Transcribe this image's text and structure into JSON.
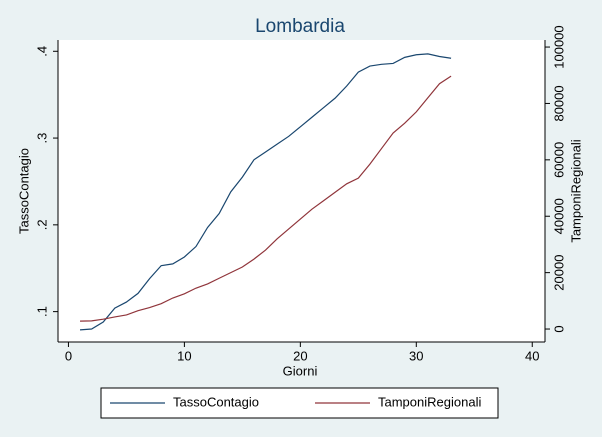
{
  "chart_data": {
    "type": "line",
    "title": "Lombardia",
    "xlabel": "Giorni",
    "ylabel": "TassoContagio",
    "y2label": "TamponiRegionali",
    "x": [
      1,
      2,
      3,
      4,
      5,
      6,
      7,
      8,
      9,
      10,
      11,
      12,
      13,
      14,
      15,
      16,
      17,
      18,
      19,
      20,
      21,
      22,
      23,
      24,
      25,
      26,
      27,
      28,
      29,
      30,
      31,
      32,
      33
    ],
    "series": [
      {
        "name": "TassoContagio",
        "color": "#1a476f",
        "axis": "y",
        "values": [
          0.079,
          0.08,
          0.088,
          0.104,
          0.111,
          0.121,
          0.138,
          0.153,
          0.155,
          0.163,
          0.175,
          0.197,
          0.213,
          0.238,
          0.255,
          0.275,
          0.284,
          0.293,
          0.302,
          0.313,
          0.324,
          0.335,
          0.346,
          0.36,
          0.376,
          0.383,
          0.385,
          0.386,
          0.393,
          0.396,
          0.397,
          0.394,
          0.392
        ]
      },
      {
        "name": "TamponiRegionali",
        "color": "#90353b",
        "axis": "y2",
        "values": [
          2800,
          2900,
          3500,
          4300,
          5000,
          6500,
          7600,
          9000,
          11000,
          12500,
          14500,
          16000,
          18000,
          20000,
          22000,
          24800,
          28000,
          32000,
          35500,
          39000,
          42500,
          45500,
          48500,
          51500,
          53500,
          58500,
          64000,
          69500,
          73000,
          77000,
          82000,
          87000,
          89700
        ]
      }
    ],
    "xlim": [
      -0.9,
      41.1
    ],
    "xticks": [
      0,
      10,
      20,
      30,
      40
    ],
    "ylim": [
      0.065,
      0.413
    ],
    "yticks": [
      {
        "value": 0.1,
        "label": ".1"
      },
      {
        "value": 0.2,
        "label": ".2"
      },
      {
        "value": 0.3,
        "label": ".3"
      },
      {
        "value": 0.4,
        "label": ".4"
      }
    ],
    "y2lim": [
      -4600,
      102500
    ],
    "y2ticks": [
      0,
      20000,
      40000,
      60000,
      80000,
      100000
    ],
    "legend": "bottom"
  }
}
